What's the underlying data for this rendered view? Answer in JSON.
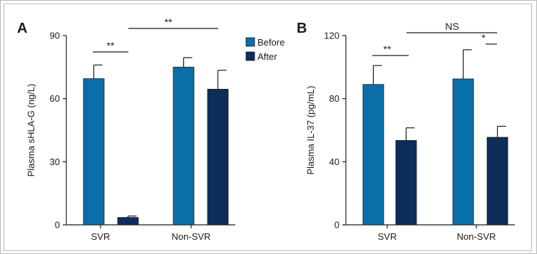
{
  "colors": {
    "before": "#0a6fa8",
    "after": "#0d2d5a"
  },
  "legend": {
    "before_label": "Before",
    "after_label": "After",
    "placement": "top-right of panel A"
  },
  "chart_data": [
    {
      "type": "bar",
      "panel_label": "A",
      "ylabel": "Plasma sHLA-G (ng/L)",
      "xlabel": "",
      "ylim": [
        0,
        90
      ],
      "yticks": [
        "0",
        "30",
        "60",
        "90"
      ],
      "categories": [
        "SVR",
        "Non-SVR"
      ],
      "series": [
        {
          "name": "Before",
          "values": [
            69.5,
            75
          ],
          "errors": [
            6.5,
            4.5
          ]
        },
        {
          "name": "After",
          "values": [
            3.5,
            64.5
          ],
          "errors": [
            0.7,
            9
          ]
        }
      ],
      "comparisons": [
        {
          "label": "**",
          "between": "SVR Before vs SVR After"
        },
        {
          "label": "**",
          "between": "SVR After vs Non-SVR After"
        }
      ]
    },
    {
      "type": "bar",
      "panel_label": "B",
      "ylabel": "Plasma IL-37 (pg/mL)",
      "xlabel": "",
      "ylim": [
        0,
        120
      ],
      "yticks": [
        "0",
        "40",
        "80",
        "120"
      ],
      "categories": [
        "SVR",
        "Non-SVR"
      ],
      "series": [
        {
          "name": "Before",
          "values": [
            89,
            92.5
          ],
          "errors": [
            12,
            18.5
          ]
        },
        {
          "name": "After",
          "values": [
            53.5,
            55.5
          ],
          "errors": [
            8,
            7
          ]
        }
      ],
      "comparisons": [
        {
          "label": "**",
          "between": "SVR Before vs SVR After"
        },
        {
          "label": "*",
          "between": "Non-SVR Before vs Non-SVR After"
        },
        {
          "label": "NS",
          "between": "SVR After vs Non-SVR After"
        }
      ]
    }
  ]
}
